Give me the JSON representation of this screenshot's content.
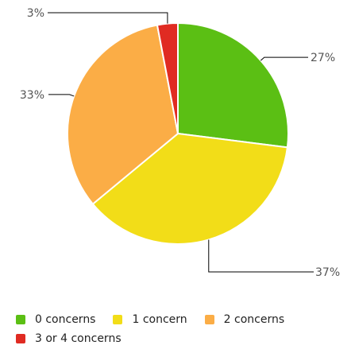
{
  "chart_data": {
    "type": "pie",
    "categories": [
      "0 concerns",
      "1 concern",
      "2 concerns",
      "3 or 4 concerns"
    ],
    "values": [
      27,
      37,
      33,
      3
    ],
    "labels": [
      "27%",
      "37%",
      "33%",
      "3%"
    ],
    "colors": [
      "#5bbf14",
      "#f2dd18",
      "#fbad46",
      "#e02b22"
    ],
    "legend_position": "bottom"
  }
}
